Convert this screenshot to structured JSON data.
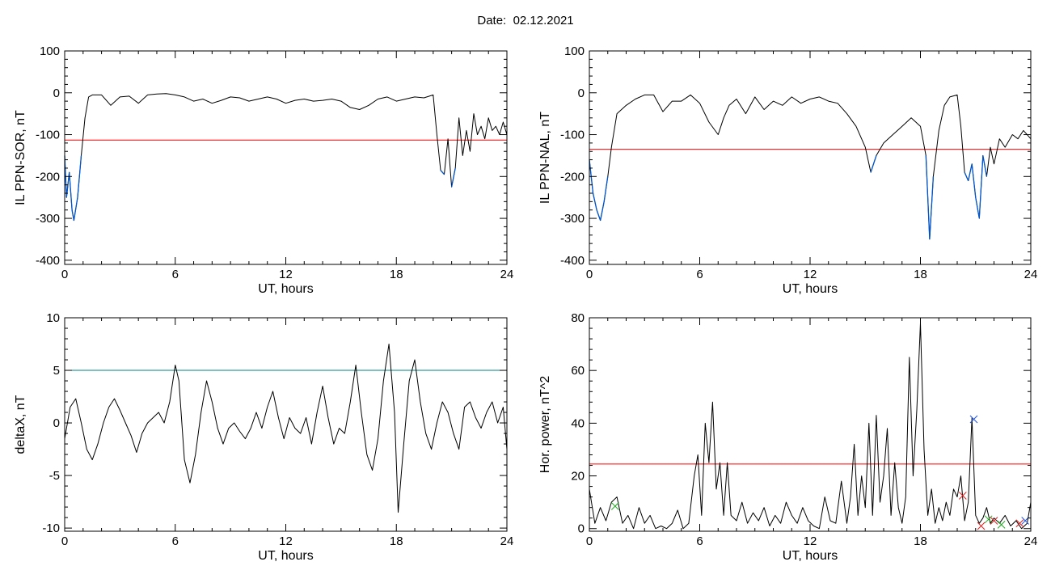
{
  "page": {
    "date_label": "Date:",
    "date_value": "02.12.2021"
  },
  "colors": {
    "trace": "#000000",
    "threshold": "#ff0000",
    "threshold_delta": "#008080",
    "highlight": "#0055cc",
    "marker_blue": "#2255dd",
    "marker_green": "#22aa22",
    "marker_red": "#dd2222"
  },
  "chart_data": [
    {
      "type": "line",
      "xlabel": "UT, hours",
      "ylabel": "IL PPN-SOR, nT",
      "xlim": [
        0,
        24
      ],
      "ylim": [
        -410,
        100
      ],
      "xticks": [
        0,
        6,
        12,
        18,
        24
      ],
      "yticks": [
        100,
        0,
        -100,
        -200,
        -300,
        -400
      ],
      "grid": false,
      "threshold": -113,
      "series": [
        {
          "values_x": [
            0,
            0.1,
            0.25,
            0.4,
            0.5,
            0.7,
            0.9,
            1.1,
            1.3,
            1.5,
            2,
            2.5,
            3,
            3.5,
            4,
            4.5,
            5,
            5.5,
            6,
            6.5,
            7,
            7.5,
            8,
            8.5,
            9,
            9.5,
            10,
            10.5,
            11,
            11.5,
            12,
            12.5,
            13,
            13.5,
            14,
            14.5,
            15,
            15.5,
            16,
            16.5,
            17,
            17.5,
            18,
            18.5,
            19,
            19.5,
            20,
            20.2,
            20.4,
            20.6,
            20.8,
            21,
            21.2,
            21.4,
            21.6,
            21.8,
            22,
            22.2,
            22.4,
            22.6,
            22.8,
            23,
            23.2,
            23.4,
            23.6,
            23.8,
            24
          ],
          "values": [
            -150,
            -250,
            -190,
            -280,
            -305,
            -250,
            -150,
            -60,
            -10,
            -5,
            -5,
            -30,
            -10,
            -8,
            -25,
            -5,
            -3,
            -2,
            -5,
            -10,
            -20,
            -15,
            -25,
            -18,
            -10,
            -12,
            -20,
            -15,
            -10,
            -15,
            -25,
            -18,
            -15,
            -20,
            -18,
            -15,
            -20,
            -35,
            -40,
            -30,
            -15,
            -10,
            -20,
            -15,
            -10,
            -12,
            -5,
            -100,
            -185,
            -195,
            -110,
            -225,
            -180,
            -60,
            -150,
            -90,
            -140,
            -50,
            -100,
            -80,
            -110,
            -60,
            -90,
            -80,
            -100,
            -70,
            -100
          ]
        }
      ],
      "highlight_below_threshold": true
    },
    {
      "type": "line",
      "xlabel": "UT, hours",
      "ylabel": "IL PPN-NAL, nT",
      "xlim": [
        0,
        24
      ],
      "ylim": [
        -410,
        100
      ],
      "xticks": [
        0,
        6,
        12,
        18,
        24
      ],
      "yticks": [
        100,
        0,
        -100,
        -200,
        -300,
        -400
      ],
      "grid": false,
      "threshold": -135,
      "series": [
        {
          "values_x": [
            0,
            0.2,
            0.4,
            0.6,
            0.8,
            1,
            1.2,
            1.5,
            2,
            2.5,
            3,
            3.5,
            4,
            4.5,
            5,
            5.5,
            6,
            6.5,
            7,
            7.3,
            7.6,
            8,
            8.5,
            9,
            9.5,
            10,
            10.5,
            11,
            11.5,
            12,
            12.5,
            13,
            13.5,
            14,
            14.5,
            15,
            15.3,
            15.6,
            16,
            16.5,
            17,
            17.5,
            18,
            18.3,
            18.5,
            18.7,
            19,
            19.3,
            19.6,
            20,
            20.2,
            20.4,
            20.6,
            20.8,
            21,
            21.2,
            21.4,
            21.6,
            21.8,
            22,
            22.3,
            22.6,
            23,
            23.3,
            23.6,
            24
          ],
          "values": [
            -160,
            -240,
            -280,
            -305,
            -260,
            -200,
            -130,
            -50,
            -30,
            -15,
            -5,
            -5,
            -45,
            -20,
            -20,
            -5,
            -25,
            -70,
            -100,
            -60,
            -30,
            -15,
            -50,
            -10,
            -40,
            -20,
            -30,
            -10,
            -25,
            -15,
            -10,
            -20,
            -25,
            -50,
            -80,
            -130,
            -190,
            -150,
            -120,
            -100,
            -80,
            -60,
            -80,
            -150,
            -350,
            -200,
            -90,
            -30,
            -10,
            -5,
            -80,
            -190,
            -210,
            -170,
            -250,
            -300,
            -150,
            -200,
            -130,
            -170,
            -110,
            -130,
            -100,
            -110,
            -90,
            -110
          ]
        }
      ],
      "highlight_below_threshold": true
    },
    {
      "type": "line",
      "xlabel": "UT, hours",
      "ylabel": "deltaX, nT",
      "xlim": [
        0,
        24
      ],
      "ylim": [
        -10.3,
        10
      ],
      "xticks": [
        0,
        6,
        12,
        18,
        24
      ],
      "yticks": [
        10,
        5,
        0,
        -5,
        -10
      ],
      "grid": false,
      "threshold": 5,
      "series": [
        {
          "values_x": [
            0,
            0.3,
            0.6,
            0.9,
            1.2,
            1.5,
            1.8,
            2.1,
            2.4,
            2.7,
            3,
            3.3,
            3.6,
            3.9,
            4.2,
            4.5,
            4.8,
            5.1,
            5.4,
            5.7,
            6,
            6.2,
            6.5,
            6.8,
            7.1,
            7.4,
            7.7,
            8,
            8.3,
            8.6,
            8.9,
            9.2,
            9.5,
            9.8,
            10.1,
            10.4,
            10.7,
            11,
            11.3,
            11.6,
            11.9,
            12.2,
            12.5,
            12.8,
            13.1,
            13.4,
            13.7,
            14,
            14.3,
            14.6,
            14.9,
            15.2,
            15.5,
            15.8,
            16.1,
            16.4,
            16.7,
            17,
            17.3,
            17.6,
            17.9,
            18.1,
            18.4,
            18.7,
            19,
            19.3,
            19.6,
            19.9,
            20.2,
            20.5,
            20.8,
            21.1,
            21.4,
            21.7,
            22,
            22.3,
            22.6,
            22.9,
            23.2,
            23.5,
            23.8,
            24
          ],
          "values": [
            -1.5,
            1.5,
            2.3,
            0,
            -2.5,
            -3.5,
            -2,
            0,
            1.5,
            2.3,
            1.2,
            0,
            -1.2,
            -2.8,
            -1,
            0,
            0.5,
            1,
            0,
            2,
            5.5,
            4,
            -3.5,
            -5.7,
            -3,
            1,
            4,
            2,
            -0.5,
            -2,
            -0.5,
            0,
            -0.8,
            -1.5,
            -0.5,
            1,
            -0.5,
            1.5,
            3,
            0.5,
            -1.5,
            0.5,
            -0.5,
            -1,
            0.5,
            -2,
            1,
            3.5,
            0.5,
            -2,
            -0.5,
            -1,
            2,
            5.5,
            1,
            -3,
            -4.5,
            -1.5,
            4,
            7.5,
            1,
            -8.5,
            -2,
            4,
            6,
            2,
            -1,
            -2.5,
            0,
            2,
            1,
            -1,
            -2.5,
            1.5,
            2,
            0.5,
            -0.5,
            1,
            2,
            0,
            1.5,
            -2.5
          ]
        }
      ]
    },
    {
      "type": "line",
      "xlabel": "UT, hours",
      "ylabel": "Hor. power, nT^2",
      "xlim": [
        0,
        24
      ],
      "ylim": [
        -1,
        80
      ],
      "xticks": [
        0,
        6,
        12,
        18,
        24
      ],
      "yticks": [
        80,
        60,
        40,
        20,
        0
      ],
      "grid": false,
      "threshold": 24.5,
      "series": [
        {
          "values_x": [
            0,
            0.3,
            0.6,
            0.9,
            1.2,
            1.5,
            1.8,
            2.1,
            2.4,
            2.7,
            3,
            3.3,
            3.6,
            3.9,
            4.2,
            4.5,
            4.8,
            5.1,
            5.4,
            5.7,
            5.9,
            6.1,
            6.3,
            6.5,
            6.7,
            6.9,
            7.1,
            7.3,
            7.5,
            7.7,
            8,
            8.3,
            8.6,
            8.9,
            9.2,
            9.5,
            9.8,
            10.1,
            10.4,
            10.7,
            11,
            11.3,
            11.6,
            11.9,
            12.2,
            12.5,
            12.8,
            13.1,
            13.4,
            13.7,
            14,
            14.2,
            14.4,
            14.6,
            14.8,
            15,
            15.2,
            15.4,
            15.6,
            15.8,
            16,
            16.2,
            16.4,
            16.6,
            16.8,
            17,
            17.2,
            17.4,
            17.6,
            17.8,
            18,
            18.2,
            18.4,
            18.6,
            18.8,
            19,
            19.2,
            19.4,
            19.6,
            19.8,
            20,
            20.2,
            20.4,
            20.6,
            20.8,
            21,
            21.2,
            21.4,
            21.6,
            21.8,
            22,
            22.3,
            22.6,
            22.9,
            23.2,
            23.5,
            23.8,
            24
          ],
          "values": [
            15,
            2,
            8,
            3,
            10,
            12,
            2,
            5,
            0,
            8,
            2,
            5,
            0,
            1,
            0,
            2,
            7,
            0,
            2,
            20,
            28,
            5,
            40,
            25,
            48,
            15,
            25,
            5,
            25,
            5,
            3,
            10,
            2,
            6,
            3,
            8,
            1,
            5,
            2,
            10,
            5,
            2,
            8,
            3,
            1,
            0,
            12,
            3,
            2,
            18,
            2,
            12,
            32,
            5,
            20,
            8,
            40,
            5,
            43,
            10,
            20,
            38,
            5,
            25,
            8,
            2,
            12,
            65,
            20,
            45,
            78,
            30,
            5,
            15,
            2,
            8,
            3,
            10,
            5,
            15,
            12,
            20,
            3,
            10,
            42,
            5,
            2,
            4,
            8,
            2,
            4,
            2,
            5,
            1,
            3,
            0,
            2,
            10
          ]
        }
      ],
      "markers": [
        {
          "x": 20.9,
          "y": 41.5,
          "symbol": "x",
          "color": "blue"
        },
        {
          "x": 1.4,
          "y": 8.5,
          "symbol": "x",
          "color": "green"
        },
        {
          "x": 20.3,
          "y": 12.5,
          "symbol": "x",
          "color": "red"
        },
        {
          "x": 21.7,
          "y": 3.5,
          "symbol": "x",
          "color": "green"
        },
        {
          "x": 22.0,
          "y": 3.0,
          "symbol": "x",
          "color": "red"
        },
        {
          "x": 22.4,
          "y": 1.5,
          "symbol": "x",
          "color": "green"
        },
        {
          "x": 23.4,
          "y": 2.0,
          "symbol": "x",
          "color": "red"
        },
        {
          "x": 23.7,
          "y": 3.0,
          "symbol": "x",
          "color": "blue"
        },
        {
          "x": 21.3,
          "y": 1.0,
          "symbol": "x",
          "color": "red"
        }
      ]
    }
  ]
}
